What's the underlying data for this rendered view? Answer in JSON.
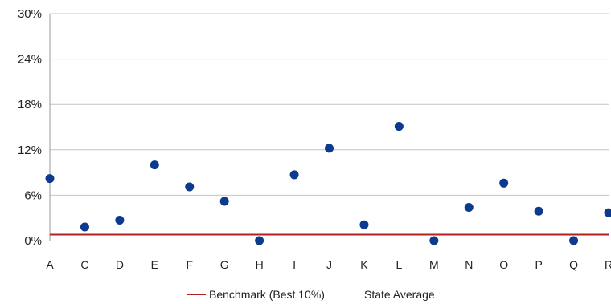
{
  "chart_data": {
    "type": "scatter",
    "categories": [
      "A",
      "C",
      "D",
      "E",
      "F",
      "G",
      "H",
      "I",
      "J",
      "K",
      "L",
      "M",
      "N",
      "O",
      "P",
      "Q",
      "R"
    ],
    "series": [
      {
        "name": "State Average",
        "values": [
          8.2,
          1.8,
          2.7,
          10.0,
          7.1,
          5.2,
          0.0,
          8.7,
          12.2,
          2.1,
          15.1,
          0.0,
          4.4,
          7.6,
          3.9,
          0.0,
          3.7
        ],
        "color": "#0b3a8f"
      }
    ],
    "benchmark": {
      "name": "Benchmark (Best 10%)",
      "value": 0.8,
      "color": "#b22222"
    },
    "ylim": [
      0,
      30
    ],
    "yticks": [
      "0%",
      "6%",
      "12%",
      "18%",
      "24%",
      "30%"
    ],
    "grid": true,
    "legend_position": "bottom"
  }
}
